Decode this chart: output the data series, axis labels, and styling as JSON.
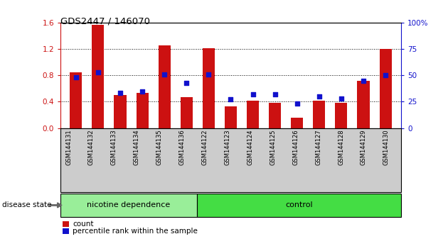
{
  "title": "GDS2447 / 146070",
  "categories": [
    "GSM144131",
    "GSM144132",
    "GSM144133",
    "GSM144134",
    "GSM144135",
    "GSM144136",
    "GSM144122",
    "GSM144123",
    "GSM144124",
    "GSM144125",
    "GSM144126",
    "GSM144127",
    "GSM144128",
    "GSM144129",
    "GSM144130"
  ],
  "count_values": [
    0.85,
    1.57,
    0.5,
    0.53,
    1.25,
    0.47,
    1.21,
    0.33,
    0.42,
    0.38,
    0.16,
    0.41,
    0.38,
    0.72,
    1.2
  ],
  "percentile_values": [
    48,
    53,
    33,
    35,
    51,
    43,
    51,
    27,
    32,
    32,
    23,
    30,
    28,
    45,
    50
  ],
  "bar_color": "#cc1111",
  "dot_color": "#1111cc",
  "ylim_left": [
    0,
    1.6
  ],
  "ylim_right": [
    0,
    100
  ],
  "yticks_left": [
    0,
    0.4,
    0.8,
    1.2,
    1.6
  ],
  "yticks_right": [
    0,
    25,
    50,
    75,
    100
  ],
  "group1_label": "nicotine dependence",
  "group2_label": "control",
  "group1_count": 6,
  "group2_count": 9,
  "legend_count_label": "count",
  "legend_pct_label": "percentile rank within the sample",
  "disease_state_label": "disease state",
  "group1_color": "#99ee99",
  "group2_color": "#44dd44",
  "bar_width": 0.55,
  "xtick_bg_color": "#cccccc",
  "plot_bg_color": "#ffffff",
  "fig_bg_color": "#ffffff"
}
